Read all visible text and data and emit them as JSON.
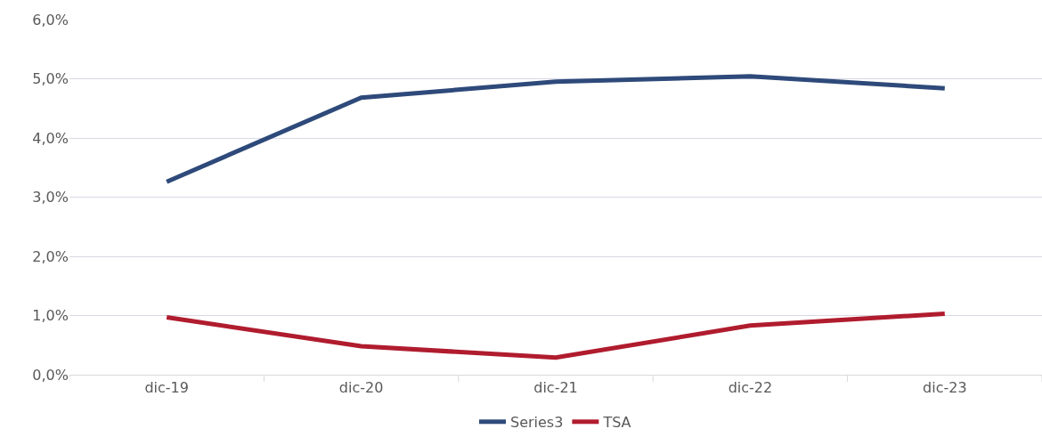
{
  "chart_data": {
    "type": "line",
    "categories": [
      "dic-19",
      "dic-20",
      "dic-21",
      "dic-22",
      "dic-23"
    ],
    "series": [
      {
        "name": "Series3",
        "color": "#2e4a7a",
        "values": [
          3.26,
          4.68,
          4.95,
          5.04,
          4.84
        ]
      },
      {
        "name": "TSA",
        "color": "#b01c2e",
        "values": [
          0.97,
          0.48,
          0.29,
          0.83,
          1.03
        ]
      }
    ],
    "ylim": [
      0,
      6
    ],
    "yticks": [
      {
        "value": 0,
        "label": "0,0%"
      },
      {
        "value": 1,
        "label": "1,0%"
      },
      {
        "value": 2,
        "label": "2,0%"
      },
      {
        "value": 3,
        "label": "3,0%"
      },
      {
        "value": 4,
        "label": "4,0%"
      },
      {
        "value": 5,
        "label": "5,0%"
      },
      {
        "value": 6,
        "label": "6,0%"
      }
    ],
    "grid": "y",
    "legend": "bottom",
    "marker": "none",
    "line_style": "solid"
  }
}
